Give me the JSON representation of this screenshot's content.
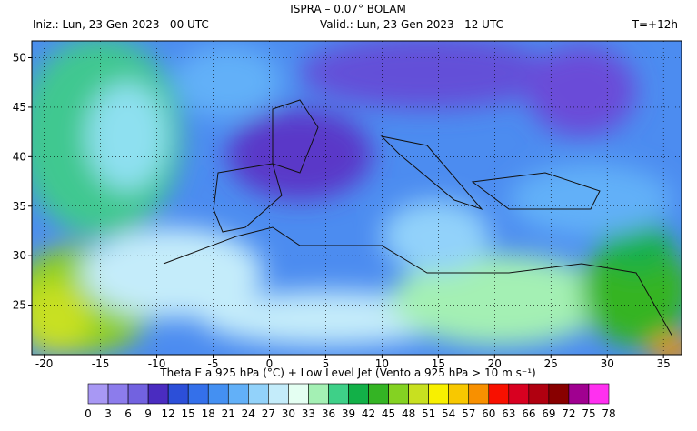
{
  "header": {
    "title": "ISPRA – 0.07° BOLAM",
    "init": "Iniz.: Lun, 23 Gen 2023   00 UTC",
    "valid": "Valid.: Lun, 23 Gen 2023   12 UTC",
    "step": "T=+12h"
  },
  "map": {
    "xlim": [
      -21.1,
      36.6
    ],
    "ylim": [
      20,
      51.7
    ],
    "xticks": [
      -20,
      -15,
      -10,
      -5,
      0,
      5,
      10,
      15,
      20,
      25,
      30,
      35
    ],
    "yticks": [
      25,
      30,
      35,
      40,
      45,
      50
    ]
  },
  "colorbar": {
    "label": "Theta E a 925 hPa (°C) + Low Level Jet (Vento a 925 hPa > 10 m s⁻¹)",
    "levels": [
      0,
      3,
      6,
      9,
      12,
      15,
      18,
      21,
      24,
      27,
      30,
      33,
      36,
      39,
      42,
      45,
      48,
      51,
      54,
      57,
      60,
      63,
      66,
      69,
      72,
      75,
      78
    ],
    "colors": [
      "#a898f4",
      "#8c7cec",
      "#7262e0",
      "#4a2cc0",
      "#2c4fd8",
      "#3470ea",
      "#4490f2",
      "#62b0f8",
      "#92d2fa",
      "#c4ecfa",
      "#e4fff2",
      "#a4f0b4",
      "#3ed088",
      "#12b048",
      "#34b424",
      "#84d222",
      "#c8e020",
      "#f8f000",
      "#f8c800",
      "#f89000",
      "#f81000",
      "#d80020",
      "#b00010",
      "#880000",
      "#a00090",
      "#ff30f0"
    ]
  }
}
